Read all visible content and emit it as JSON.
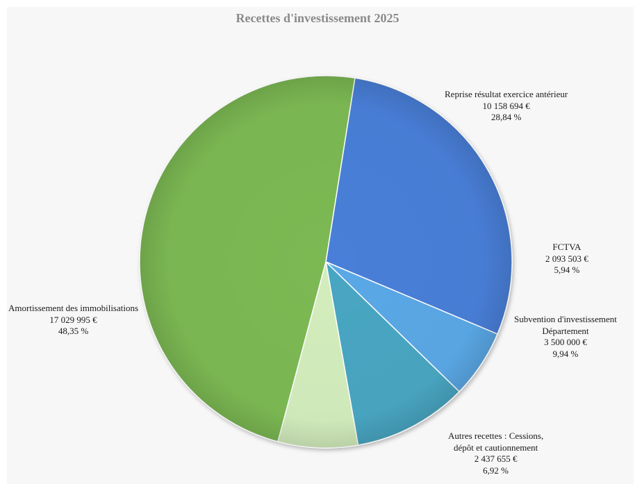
{
  "chart_data": {
    "type": "pie",
    "title": "Recettes d'investissement 2025",
    "slices": [
      {
        "name_lines": [
          "Reprise résultat exercice antérieur"
        ],
        "value_label": "10 158 694 €",
        "value": 10158694,
        "percent_label": "28,84 %",
        "percent": 28.84,
        "color": "#4a7fd8"
      },
      {
        "name_lines": [
          "FCTVA"
        ],
        "value_label": "2 093 503 €",
        "value": 2093503,
        "percent_label": "5,94 %",
        "percent": 5.94,
        "color": "#5aa8e6"
      },
      {
        "name_lines": [
          "Subvention d'investissement",
          "Département"
        ],
        "value_label": "3 500 000 €",
        "value": 3500000,
        "percent_label": "9,94 %",
        "percent": 9.94,
        "color": "#4aa6c2"
      },
      {
        "name_lines": [
          "Autres recettes : Cessions,",
          "dépôt et cautionnement"
        ],
        "value_label": "2 437 655 €",
        "value": 2437655,
        "percent_label": "6,92 %",
        "percent": 6.92,
        "color": "#d3edbd"
      },
      {
        "name_lines": [
          "Amortissement des immobilisations"
        ],
        "value_label": "17 029 995 €",
        "value": 17029995,
        "percent_label": "48,35 %",
        "percent": 48.35,
        "color": "#7cb952"
      }
    ],
    "legend": "none"
  }
}
